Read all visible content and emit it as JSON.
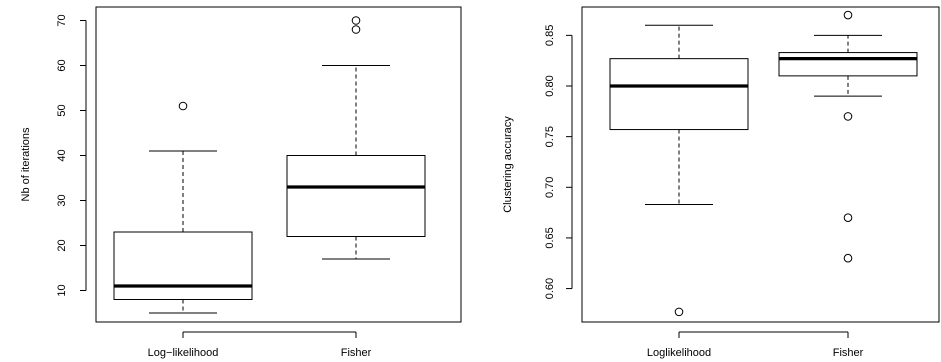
{
  "chart_data": [
    {
      "type": "boxplot",
      "title": "",
      "xlabel": "",
      "ylabel": "Nb of iterations",
      "ylim": [
        3,
        73
      ],
      "yticks": [
        10,
        20,
        30,
        40,
        50,
        60,
        70
      ],
      "categories": [
        "Log−likelihood",
        "Fisher"
      ],
      "boxes": [
        {
          "category": "Log−likelihood",
          "whisker_low": 5,
          "q1": 8,
          "median": 11,
          "q3": 23,
          "whisker_high": 41,
          "outliers": [
            51
          ]
        },
        {
          "category": "Fisher",
          "whisker_low": 17,
          "q1": 22,
          "median": 33,
          "q3": 40,
          "whisker_high": 60,
          "outliers": [
            68,
            70
          ]
        }
      ]
    },
    {
      "type": "boxplot",
      "title": "",
      "xlabel": "",
      "ylabel": "Clustering accuracy",
      "ylim": [
        0.567,
        0.878
      ],
      "yticks": [
        0.6,
        0.65,
        0.7,
        0.75,
        0.8,
        0.85
      ],
      "ytick_labels": [
        "0.60",
        "0.65",
        "0.70",
        "0.75",
        "0.80",
        "0.85"
      ],
      "categories": [
        "Loglikelihood",
        "Fisher"
      ],
      "boxes": [
        {
          "category": "Loglikelihood",
          "whisker_low": 0.683,
          "q1": 0.757,
          "median": 0.8,
          "q3": 0.827,
          "whisker_high": 0.86,
          "outliers": [
            0.577
          ]
        },
        {
          "category": "Fisher",
          "whisker_low": 0.79,
          "q1": 0.81,
          "median": 0.827,
          "q3": 0.833,
          "whisker_high": 0.85,
          "outliers": [
            0.87,
            0.77,
            0.67,
            0.63
          ]
        }
      ]
    }
  ]
}
